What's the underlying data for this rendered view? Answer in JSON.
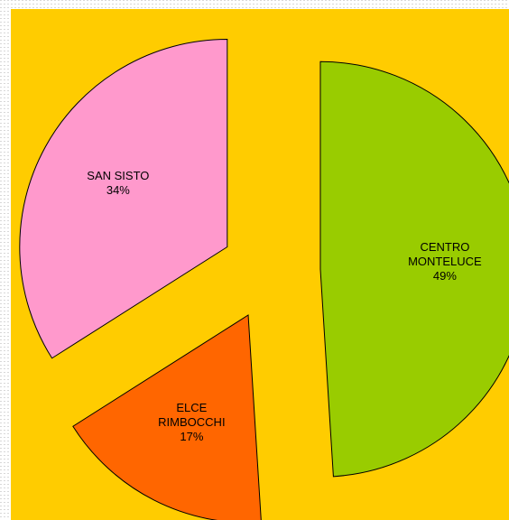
{
  "chart_data": {
    "type": "pie",
    "categories": [
      "CENTRO\nMONTELUCE",
      "ELCE\nRIMBOCCHI",
      "SAN SISTO"
    ],
    "values": [
      49,
      17,
      34
    ],
    "value_labels": [
      "49%",
      "17%",
      "34%"
    ],
    "colors": [
      "#99cc00",
      "#ff6600",
      "#ff99cc"
    ]
  }
}
